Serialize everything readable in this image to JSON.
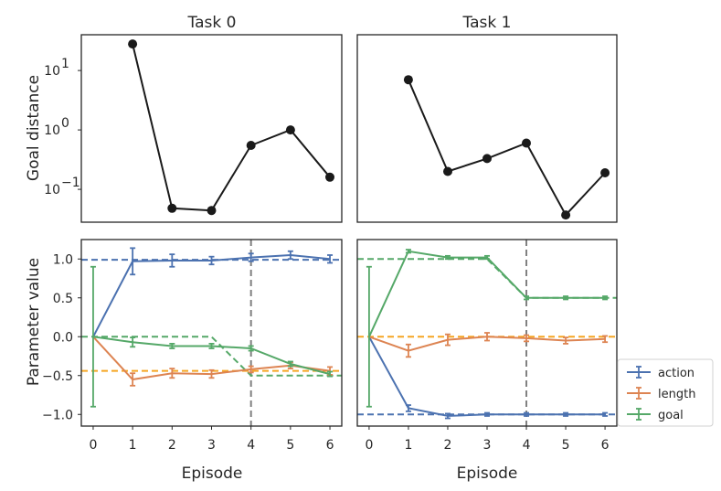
{
  "chart_data": [
    {
      "panel": "top-left",
      "type": "line",
      "title": "Task 0",
      "ylabel": "Goal distance",
      "yscale": "log",
      "ylim": [
        0.028,
        40
      ],
      "xlim": [
        -0.3,
        6.3
      ],
      "ytick_labels": [
        {
          "value": 10,
          "base": "10",
          "exp": "1"
        },
        {
          "value": 1,
          "base": "10",
          "exp": "0"
        },
        {
          "value": 0.1,
          "base": "10",
          "exp": "−1"
        }
      ],
      "series": [
        {
          "name": "goal distance",
          "color": "#1a1a1a",
          "x": [
            1,
            2,
            3,
            4,
            5,
            6
          ],
          "y": [
            28,
            0.048,
            0.044,
            0.55,
            1.0,
            0.16
          ]
        }
      ]
    },
    {
      "panel": "top-right",
      "type": "line",
      "title": "Task 1",
      "yscale": "log",
      "ylim": [
        0.028,
        40
      ],
      "xlim": [
        -0.3,
        6.3
      ],
      "series": [
        {
          "name": "goal distance",
          "color": "#1a1a1a",
          "x": [
            1,
            2,
            3,
            4,
            5,
            6
          ],
          "y": [
            7.0,
            0.2,
            0.33,
            0.6,
            0.037,
            0.19
          ]
        }
      ]
    },
    {
      "panel": "bottom-left",
      "type": "line",
      "ylabel": "Parameter value",
      "xlabel": "Episode",
      "ylim": [
        -1.15,
        1.25
      ],
      "xlim": [
        -0.3,
        6.3
      ],
      "xticks": [
        "0",
        "1",
        "2",
        "3",
        "4",
        "5",
        "6"
      ],
      "yticks": [
        {
          "value": 1.0,
          "label": "1.0"
        },
        {
          "value": 0.5,
          "label": "0.5"
        },
        {
          "value": 0.0,
          "label": "0.0"
        },
        {
          "value": -0.5,
          "label": "−0.5"
        },
        {
          "value": -1.0,
          "label": "−1.0"
        }
      ],
      "vline_x": 4,
      "series": [
        {
          "name": "action",
          "color": "#4c72b0",
          "x": [
            0,
            1,
            2,
            3,
            4,
            5,
            6
          ],
          "y": [
            0,
            0.97,
            0.98,
            0.98,
            1.02,
            1.05,
            1.0
          ],
          "err": [
            0,
            0.17,
            0.08,
            0.05,
            0.05,
            0.05,
            0.05
          ],
          "target_x": [
            0,
            6
          ],
          "target_y": [
            0.99,
            0.99
          ],
          "target_color": "#4c72b0"
        },
        {
          "name": "length",
          "color": "#dd8452",
          "x": [
            0,
            1,
            2,
            3,
            4,
            5,
            6
          ],
          "y": [
            0,
            -0.55,
            -0.47,
            -0.48,
            -0.42,
            -0.37,
            -0.44
          ],
          "err": [
            0,
            0.08,
            0.06,
            0.05,
            0.04,
            0.04,
            0.05
          ],
          "target_x": [
            0,
            6
          ],
          "target_y": [
            -0.44,
            -0.44
          ],
          "target_color": "#f5a623"
        },
        {
          "name": "goal",
          "color": "#55a868",
          "x": [
            0,
            1,
            2,
            3,
            4,
            5,
            6
          ],
          "y": [
            0,
            -0.07,
            -0.12,
            -0.12,
            -0.15,
            -0.35,
            -0.48
          ],
          "err": [
            0.9,
            0.06,
            0.03,
            0.03,
            0.03,
            0.03,
            0.03
          ],
          "target_x": [
            0,
            3,
            4,
            6
          ],
          "target_y": [
            0,
            0,
            -0.5,
            -0.5
          ],
          "target_color": "#55a868"
        }
      ]
    },
    {
      "panel": "bottom-right",
      "type": "line",
      "xlabel": "Episode",
      "ylim": [
        -1.15,
        1.25
      ],
      "xlim": [
        -0.3,
        6.3
      ],
      "xticks": [
        "0",
        "1",
        "2",
        "3",
        "4",
        "5",
        "6"
      ],
      "vline_x": 4,
      "series": [
        {
          "name": "action",
          "color": "#4c72b0",
          "x": [
            0,
            1,
            2,
            3,
            4,
            5,
            6
          ],
          "y": [
            0,
            -0.92,
            -1.02,
            -1.0,
            -1.0,
            -1.0,
            -1.0
          ],
          "err": [
            0,
            0.04,
            0.03,
            0.02,
            0.02,
            0.02,
            0.02
          ],
          "target_x": [
            0,
            6
          ],
          "target_y": [
            -1.0,
            -1.0
          ],
          "target_color": "#4c72b0"
        },
        {
          "name": "length",
          "color": "#dd8452",
          "x": [
            0,
            1,
            2,
            3,
            4,
            5,
            6
          ],
          "y": [
            0,
            -0.18,
            -0.04,
            0.0,
            -0.02,
            -0.05,
            -0.03
          ],
          "err": [
            0,
            0.08,
            0.07,
            0.05,
            0.04,
            0.04,
            0.04
          ],
          "target_x": [
            0,
            6
          ],
          "target_y": [
            0.0,
            0.0
          ],
          "target_color": "#f5a623"
        },
        {
          "name": "goal",
          "color": "#55a868",
          "x": [
            0,
            1,
            2,
            3,
            4,
            5,
            6
          ],
          "y": [
            0,
            1.1,
            1.02,
            1.02,
            0.5,
            0.5,
            0.5
          ],
          "err": [
            0.9,
            0.02,
            0.02,
            0.02,
            0.02,
            0.02,
            0.02
          ],
          "target_x": [
            0,
            3,
            4,
            6
          ],
          "target_y": [
            1.0,
            1.0,
            0.5,
            0.5
          ],
          "target_color": "#55a868"
        }
      ]
    }
  ],
  "legend": {
    "placement": "lower-right, outside right panel",
    "items": [
      {
        "label": "action",
        "color": "#4c72b0"
      },
      {
        "label": "length",
        "color": "#dd8452"
      },
      {
        "label": "goal",
        "color": "#55a868"
      }
    ]
  },
  "vline_color": "#808080"
}
